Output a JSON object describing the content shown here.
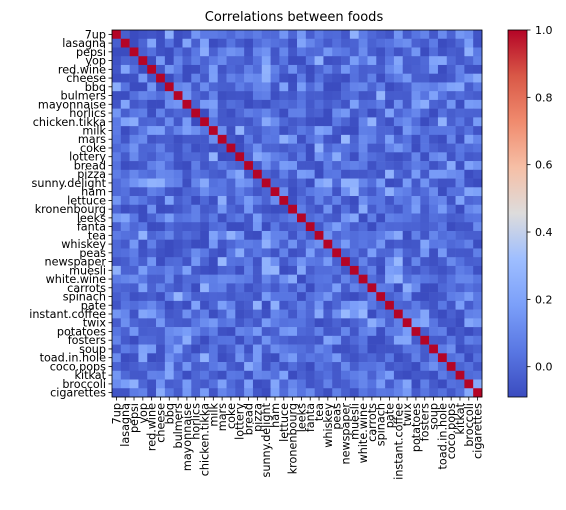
{
  "chart_data": {
    "type": "heatmap",
    "title": "Correlations between foods",
    "labels": [
      "7up",
      "lasagna",
      "pepsi",
      "yop",
      "red.wine",
      "cheese",
      "bbq",
      "bulmers",
      "mayonnaise",
      "horlics",
      "chicken.tikka",
      "milk",
      "mars",
      "coke",
      "lottery",
      "bread",
      "pizza",
      "sunny.delight",
      "ham",
      "lettuce",
      "kronenbourg",
      "leeks",
      "fanta",
      "tea",
      "whiskey",
      "peas",
      "newspaper",
      "muesli",
      "white.wine",
      "carrots",
      "spinach",
      "pate",
      "instant.coffee",
      "twix",
      "potatoes",
      "fosters",
      "soup",
      "toad.in.hole",
      "coco.pops",
      "kitkat",
      "broccoli",
      "cigarettes"
    ],
    "diagonal_value": 1.0,
    "off_diagonal_range": [
      -0.1,
      0.3
    ],
    "colorbar": {
      "colormap": "coolwarm",
      "range": [
        -0.09,
        1.0
      ],
      "ticks": [
        1.0,
        0.8,
        0.6,
        0.4,
        0.2,
        0.0
      ],
      "tick_labels": [
        "1.0",
        "0.8",
        "0.6",
        "0.4",
        "0.2",
        "0.0"
      ],
      "low_color": "#3b4cc0",
      "high_color": "#b40426"
    }
  }
}
